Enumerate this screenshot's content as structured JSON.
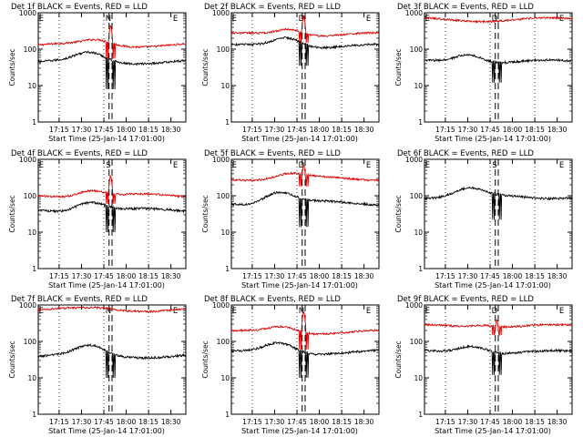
{
  "colors": {
    "events": "#000000",
    "lld": "#dd0000",
    "axis": "#000000",
    "background": "#ffffff"
  },
  "chart_data": [
    {
      "type": "line",
      "title": "Det 1f BLACK = Events, RED = LLD",
      "xlabel": "Start Time (25-Jan-14 17:01:00)",
      "ylabel": "Counts/sec",
      "y_scale": "log",
      "ylim": [
        1,
        1000
      ],
      "x_ticks": [
        "17:15",
        "17:30",
        "17:45",
        "18:00",
        "18:15",
        "18:30"
      ],
      "y_ticks": [
        "1",
        "10",
        "100",
        "1000"
      ],
      "markers": [
        "E",
        "N",
        "E"
      ],
      "series": [
        {
          "color": "red",
          "base": 130,
          "peak": 1.35,
          "peak_pos": 0.4,
          "spike": 480,
          "gap": 55
        },
        {
          "color": "black",
          "base": 45,
          "peak": 1.7,
          "peak_pos": 0.35,
          "spike": null,
          "gap": 8
        }
      ]
    },
    {
      "type": "line",
      "title": "Det 2f BLACK = Events, RED = LLD",
      "xlabel": "Start Time (25-Jan-14 17:01:00)",
      "ylabel": "Counts/sec",
      "y_scale": "log",
      "ylim": [
        1,
        1000
      ],
      "x_ticks": [
        "17:15",
        "17:30",
        "17:45",
        "18:00",
        "18:15",
        "18:30"
      ],
      "y_ticks": [
        "1",
        "10",
        "100",
        "1000"
      ],
      "markers": [
        "E",
        "D",
        "E"
      ],
      "series": [
        {
          "color": "red",
          "base": 250,
          "peak": 1.5,
          "peak_pos": 0.4,
          "spike": 900,
          "gap": 150
        },
        {
          "color": "black",
          "base": 120,
          "peak": 1.8,
          "peak_pos": 0.38,
          "spike": null,
          "gap": 35
        }
      ]
    },
    {
      "type": "line",
      "title": "Det 3f BLACK = Events, RED = LLD",
      "xlabel": "Start Time (25-Jan-14 17:01:00)",
      "ylabel": "Counts/sec",
      "y_scale": "log",
      "ylim": [
        1,
        1000
      ],
      "x_ticks": [
        "17:15",
        "17:30",
        "17:45",
        "18:00",
        "18:15",
        "18:30"
      ],
      "y_ticks": [
        "1",
        "10",
        "100",
        "1000"
      ],
      "markers": [
        "E",
        "D",
        "E"
      ],
      "series": [
        {
          "color": "red",
          "base": 650,
          "peak": 1.0,
          "peak_pos": 0.4,
          "spike": null,
          "gap": null
        },
        {
          "color": "black",
          "base": 45,
          "peak": 1.7,
          "peak_pos": 0.3,
          "spike": null,
          "gap": 12
        }
      ]
    },
    {
      "type": "line",
      "title": "Det 4f BLACK = Events, RED = LLD",
      "xlabel": "Start Time (25-Jan-14 17:01:00)",
      "ylabel": "Counts/sec",
      "y_scale": "log",
      "ylim": [
        1,
        1000
      ],
      "x_ticks": [
        "17:15",
        "17:30",
        "17:45",
        "18:00",
        "18:15",
        "18:30"
      ],
      "y_ticks": [
        "1",
        "10",
        "100",
        "1000"
      ],
      "markers": [
        "E",
        "S",
        "E"
      ],
      "series": [
        {
          "color": "red",
          "base": 100,
          "peak": 1.5,
          "peak_pos": 0.35,
          "spike": 380,
          "gap": 60
        },
        {
          "color": "black",
          "base": 40,
          "peak": 1.8,
          "peak_pos": 0.35,
          "spike": null,
          "gap": 10
        }
      ]
    },
    {
      "type": "line",
      "title": "Det 5f BLACK = Events, RED = LLD",
      "xlabel": "Start Time (25-Jan-14 17:01:00)",
      "ylabel": "Counts/sec",
      "y_scale": "log",
      "ylim": [
        1,
        1000
      ],
      "x_ticks": [
        "17:15",
        "17:30",
        "17:45",
        "18:00",
        "18:15",
        "18:30"
      ],
      "y_ticks": [
        "1",
        "10",
        "100",
        "1000"
      ],
      "markers": [
        "E",
        "D",
        "E"
      ],
      "series": [
        {
          "color": "red",
          "base": 300,
          "peak": 1.3,
          "peak_pos": 0.4,
          "spike": 750,
          "gap": 180
        },
        {
          "color": "black",
          "base": 65,
          "peak": 1.9,
          "peak_pos": 0.32,
          "spike": null,
          "gap": 14
        }
      ]
    },
    {
      "type": "line",
      "title": "Det 6f BLACK = Events, RED = LLD",
      "xlabel": "Start Time (25-Jan-14 17:01:00)",
      "ylabel": "Counts/sec",
      "y_scale": "log",
      "ylim": [
        1,
        1000
      ],
      "x_ticks": [
        "17:15",
        "17:30",
        "17:45",
        "18:00",
        "18:15",
        "18:30"
      ],
      "y_ticks": [
        "1",
        "10",
        "100",
        "1000"
      ],
      "markers": [
        "E",
        "S",
        "E"
      ],
      "series": [
        {
          "color": "black",
          "base": 95,
          "peak": 1.6,
          "peak_pos": 0.3,
          "spike": null,
          "gap": 22
        }
      ]
    },
    {
      "type": "line",
      "title": "Det 7f BLACK = Events, RED = LLD",
      "xlabel": "Start Time (25-Jan-14 17:01:00)",
      "ylabel": "Counts/sec",
      "y_scale": "log",
      "ylim": [
        1,
        1000
      ],
      "x_ticks": [
        "17:15",
        "17:30",
        "17:45",
        "18:00",
        "18:15",
        "18:30"
      ],
      "y_ticks": [
        "1",
        "10",
        "100",
        "1000"
      ],
      "markers": [
        "E",
        "N",
        "E"
      ],
      "series": [
        {
          "color": "red",
          "base": 750,
          "peak": 1.05,
          "peak_pos": 0.4,
          "spike": null,
          "gap": null
        },
        {
          "color": "black",
          "base": 40,
          "peak": 1.8,
          "peak_pos": 0.35,
          "spike": null,
          "gap": 10
        }
      ]
    },
    {
      "type": "line",
      "title": "Det 8f BLACK = Events, RED = LLD",
      "xlabel": "Start Time (25-Jan-14 17:01:00)",
      "ylabel": "Counts/sec",
      "y_scale": "log",
      "ylim": [
        1,
        1000
      ],
      "x_ticks": [
        "17:15",
        "17:30",
        "17:45",
        "18:00",
        "18:15",
        "18:30"
      ],
      "y_ticks": [
        "1",
        "10",
        "100",
        "1000"
      ],
      "markers": [
        "E",
        "N",
        "E"
      ],
      "series": [
        {
          "color": "red",
          "base": 180,
          "peak": 1.4,
          "peak_pos": 0.35,
          "spike": 700,
          "gap": 60
        },
        {
          "color": "black",
          "base": 50,
          "peak": 1.8,
          "peak_pos": 0.33,
          "spike": null,
          "gap": 10
        }
      ]
    },
    {
      "type": "line",
      "title": "Det 9f BLACK = Events, RED = LLD",
      "xlabel": "Start Time (25-Jan-14 17:01:00)",
      "ylabel": "Counts/sec",
      "y_scale": "log",
      "ylim": [
        1,
        1000
      ],
      "x_ticks": [
        "17:15",
        "17:30",
        "17:45",
        "18:00",
        "18:15",
        "18:30"
      ],
      "y_ticks": [
        "1",
        "10",
        "100",
        "1000"
      ],
      "markers": [
        "E",
        "D",
        "E"
      ],
      "series": [
        {
          "color": "red",
          "base": 260,
          "peak": 1.2,
          "peak_pos": 0.4,
          "spike": 420,
          "gap": 150
        },
        {
          "color": "black",
          "base": 50,
          "peak": 1.6,
          "peak_pos": 0.33,
          "spike": null,
          "gap": 12
        }
      ]
    }
  ]
}
